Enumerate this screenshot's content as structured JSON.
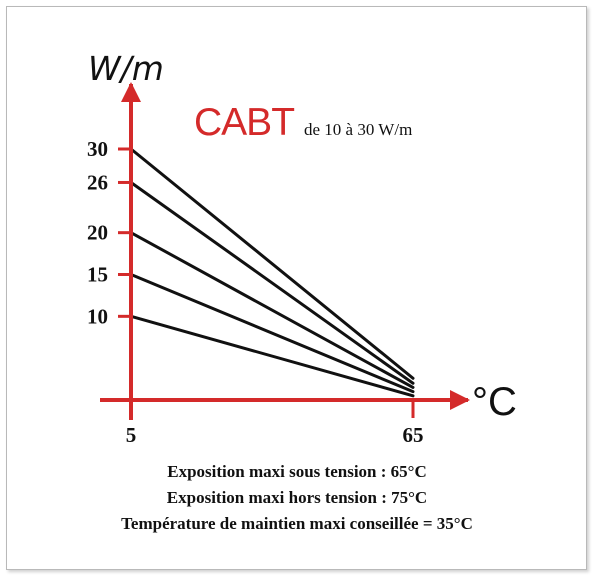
{
  "chart_data": {
    "type": "line",
    "title": "CABT",
    "subtitle": "de 10 à 30 W/m",
    "ylabel": "W/m",
    "xlabel": "°C",
    "x_ticks": [
      "5",
      "65"
    ],
    "y_ticks": [
      "10",
      "15",
      "20",
      "26",
      "30"
    ],
    "xlim": [
      5,
      65
    ],
    "ylim": [
      0,
      30
    ],
    "grid": false,
    "series": [
      {
        "x": [
          5,
          65
        ],
        "values": [
          30,
          2.6
        ]
      },
      {
        "x": [
          5,
          65
        ],
        "values": [
          26,
          2.0
        ]
      },
      {
        "x": [
          5,
          65
        ],
        "values": [
          20,
          1.5
        ]
      },
      {
        "x": [
          5,
          65
        ],
        "values": [
          15,
          1.0
        ]
      },
      {
        "x": [
          5,
          65
        ],
        "values": [
          10,
          0.5
        ]
      }
    ],
    "notes": [
      "Exposition maxi sous tension : 65°C",
      "Exposition maxi hors tension : 75°C",
      "Température de maintien maxi conseillée = 35°C"
    ]
  },
  "colors": {
    "axis": "#d42a2a",
    "title": "#d42a2a",
    "series": "#111111",
    "text": "#111111"
  }
}
